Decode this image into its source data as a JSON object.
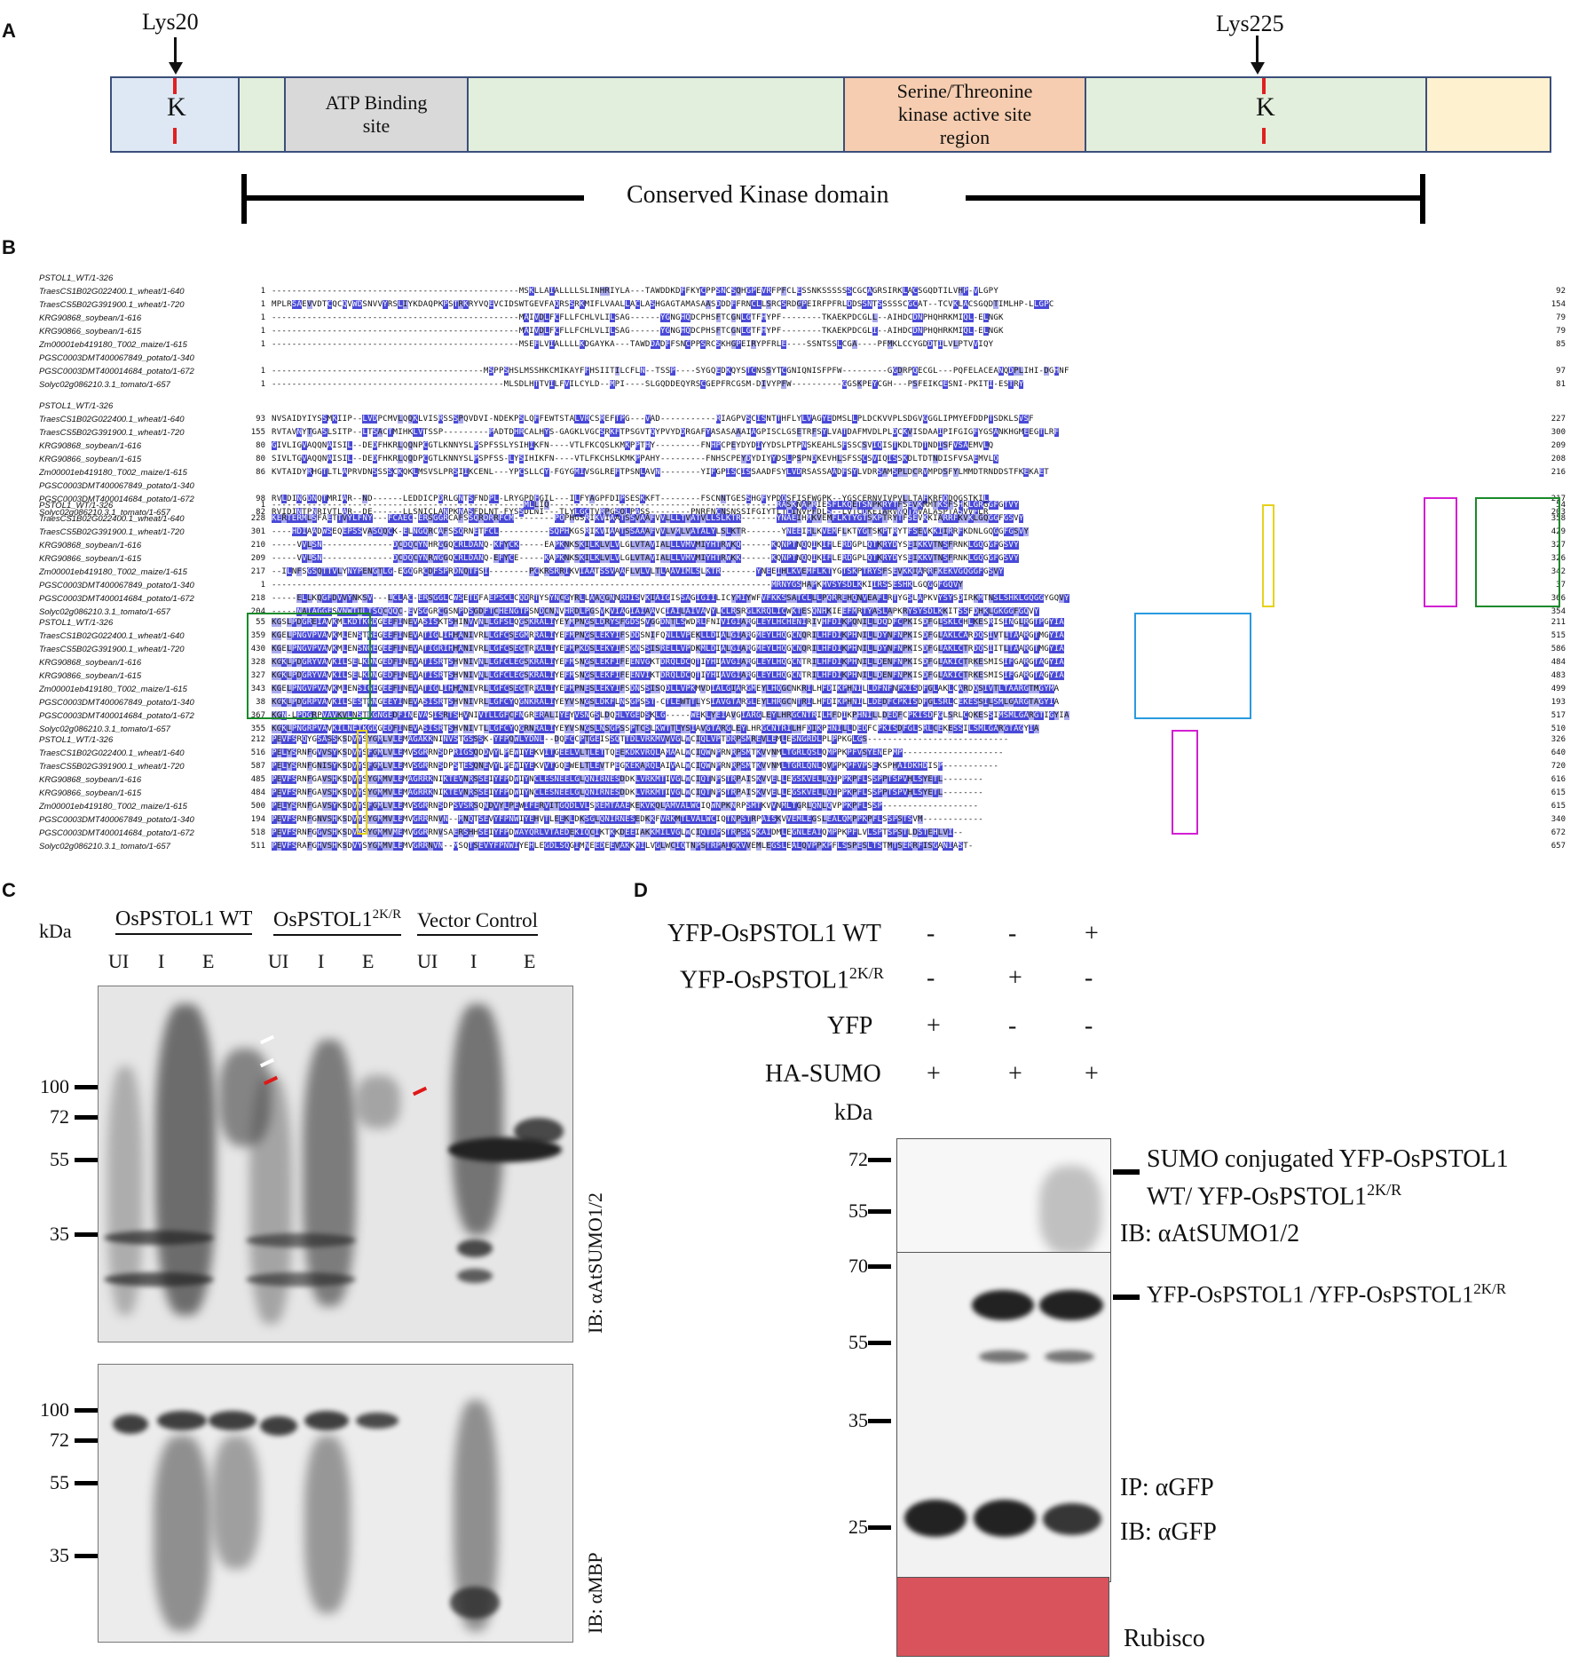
{
  "panels": {
    "A": "A",
    "B": "B",
    "C": "C",
    "D": "D"
  },
  "panelA": {
    "lys_left": "Lys20",
    "lys_right": "Lys225",
    "k_letter": "K",
    "atp": "ATP Binding site",
    "ser_line1": "Serine/Threonine",
    "ser_line2": "kinase active site",
    "ser_line3": "region",
    "conserved": "Conserved Kinase domain",
    "colors": {
      "seg1": "#dde8f4",
      "seg2": "#e2efdc",
      "seg_atp": "#d9d9d9",
      "seg_ser": "#f6cdb0",
      "seg_last": "#fdf1cf",
      "border": "#3b4f7a"
    }
  },
  "panelB": {
    "blocks": [
      {
        "rows": [
          {
            "name": "PSTOL1_WT/1-326",
            "start": "",
            "seq": "",
            "end": ""
          },
          {
            "name": "TraesCS1B02G022400.1_wheat/1-640",
            "start": "1",
            "seq": "-------------------------------------------------MSKLLAIALLLLSLINHRIYLA---TAWDDKDFFKYCPPSNCSQHGPEVRFPFCLESSNKSSSSSSCGCAGRSIRKLACSGQDTILVHP-VLGPY",
            "end": "92"
          },
          {
            "name": "TraesCS5B02G391900.1_wheat/1-720",
            "start": "1",
            "seq": "MPLRSAEVVDTCQCQVWDSNVVYRSLIYKDAQPKPSTRKRYVQEVCIDSWTGEVFAQRSSRKMIFLVAALLACLASHGAGTAMASAASDDDFFRNCLLSRCSRDGPEIRFPFRLDDSSNTSSSSSCGCAT--TCVKLACSGQDTIMLHP-LLGPC",
            "end": "154"
          },
          {
            "name": "KRG90868_soybean/1-616",
            "start": "1",
            "seq": "-------------------------------------------------MAIVDLFCFLLFCHLVLILSAG------YGNGHQDCPHSFTCGNLGTFHYPF--------TKAEKPDCGLL--AIHDCDNPHQHRKMIQL-ELNGK",
            "end": "79"
          },
          {
            "name": "KRG90866_soybean/1-615",
            "start": "1",
            "seq": "-------------------------------------------------MAIVDLFCFLLFCHLVLILSAG------YGNGHQDCPHSFTCGNLGTFHYPF--------TKAEKPDCGLI--AIHDCDNPHQHRKMIQL-ELNGK",
            "end": "79"
          },
          {
            "name": "Zm00001eb419180_T002_maize/1-615",
            "start": "1",
            "seq": "-------------------------------------------------MSEFLVIALLLLKDGAYKA---TAWDDADFFSNCPPSRCSKHGPEIRYPFRLE----SSNTSSLCGA----PFMKLCCYGDDTILVLPTVVIQY",
            "end": "85"
          },
          {
            "name": "PGSC0003DMT400067849_potato/1-340",
            "start": "",
            "seq": "",
            "end": ""
          },
          {
            "name": "PGSC0003DMT400014684_potato/1-672",
            "start": "1",
            "seq": "------------------------------------------MSPPSHSLMSSHKCMIKAYFFHSIITILCFLN--TSSP----SYGQEDKQYSTCNSSYTCGNIQNISFPFW---------GGDRPQECGL---PQFELACEANQDPLIHI-DGHNF",
            "end": "97"
          },
          {
            "name": "Solyc02g086210.3.1_tomato/1-657",
            "start": "1",
            "seq": "----------------------------------------------MLSDLHTTVILFVILCYLD--MPI----SLGQDDEQYRSCGEPFRCGSM-DIVYPFW----------GGSKPEYCGH---PSFEIKCESNI-PKITI-ESTRY",
            "end": "81"
          }
        ]
      },
      {
        "rows": [
          {
            "name": "PSTOL1_WT/1-326",
            "start": "",
            "seq": "",
            "end": ""
          },
          {
            "name": "TraesCS1B02G022400.1_wheat/1-640",
            "start": "93",
            "seq": "NVSAIDYIYSSMKIIP--LVDPCMVLQQKLVISRSSSPQVDVI-NDEKPSLQFFEWTSTALVRCSREFTPG---VAD-----------RIAGPVSCISNTTHFLYLVAGYEDMSLLPLDCKVVPLSDGVGGGLIPMYEFDDPTSDKLSVSF",
            "end": "227"
          },
          {
            "name": "TraesCS5B02G391900.1_wheat/1-720",
            "start": "155",
            "seq": "RVTAVNYTGASLSITP--LTSACTMIHKLVTSSP---------PADTDHRCALHYS-GAGKLVGCSRKFTPSGVTQYPVYDDRGAFYASASAAAIAGPISCLGSETRFSYLVATDAFMVDLPLDCKVISDAAIPIFGIGFYGSANKHGMEEGTLRF",
            "end": "300"
          },
          {
            "name": "KRG90868_soybean/1-616",
            "start": "80",
            "seq": "GIVLIGVAQQNAISIL--DEDFHKRLQQNPCGTLKNNYSLPSPFSSLYSIHIKFN----VTLFKCQSLKMKPPTHY---------FNHPCPEYDYDIYYDSLPTPNSKEAHLSFSSCSVIQISTKDLTDTNDISFVSAEMVLQ",
            "end": "209"
          },
          {
            "name": "KRG90866_soybean/1-615",
            "start": "80",
            "seq": "SIVLTGVAQQNAISIL--DEDFHKRLQQDPCGTLKNNYSLPSPFSS-LYSIHIKFN----VTLFKCHSLKMKPPAHY---------FNHSCPEYDYDIYYDSLPSPNDKEVHLSFSSCSVIQISSKDLTDTNDISFVSAEMVLQ",
            "end": "208"
          },
          {
            "name": "Zm00001eb419180_T002_maize/1-615",
            "start": "86",
            "seq": "KVTAIDYRHGTLTLAPRVDNSSSSCKQKLMSVSLPRSIIKCENL---YPCSLLCY-FGYGMIVSGLREFTPSNLAVN--------YIFGPISCISSAADFSYLVDRSASSAADFSYLVDRSAMSPLDCRVMPDSFYLMMDTRNDDSTFKEKAET",
            "end": "216"
          },
          {
            "name": "PGSC0003DMT400067849_potato/1-340",
            "start": "",
            "seq": "",
            "end": ""
          },
          {
            "name": "PGSC0003DMT400014684_potato/1-672",
            "start": "98",
            "seq": "RVLDINGDNQTMRIAR--ND------LEDDICPDRLGNTSFNDPL-LRYGPDFGIL---ILFYAGPFDIPSESKKFT--------FSCNNTGESSHGFYPDQSFISFWGPK--YGSCERNVIVPVLLTAFKRFQDQGSTKIL",
            "end": "217"
          },
          {
            "name": "Solyc02g086210.3.1_tomato/1-657",
            "start": "82",
            "seq": "RVIDINTPNRIVTLAR--DE------LLSNICLANPKNASFDLNT-FYSSDLNI---TLYLGCTVRPGSQLPASS--------PNRFNCNSNSSIFGIYTLTLINVPFDLS--LVTCQKEIARVNQTAVALASPTASVVFLR",
            "end": "203"
          }
        ]
      },
      {
        "rows": [
          {
            "name": "PSTOL1_WT/1-326",
            "start": "1",
            "seq": "--------------------------------------------------MLLIQ---------------------------------------------RASKNAPRIESFLKQETSNPKRYTFSEVKRMTKSFSHKLGRGGFGTVY",
            "end": "54"
          },
          {
            "name": "TraesCS1B02G022400.1_wheat/1-640",
            "start": "228",
            "seq": "KERTERMLSFAETTVYLFNY---FCAEC-ERSGGRCAFSSQRDRRFCM--------POPHGSRIKVIAATSSVAAFVVLLLTVATVLLSLKTR-------YNAEIHMKVEMFLKTYGTSKPTRYTFSEVKKIARRFKVKLGQGGFGSVY",
            "end": "358"
          },
          {
            "name": "TraesCS5B02G391900.1_wheat/1-720",
            "start": "301",
            "seq": "----HDIAADWSEQEPSSVASQQCK-ELNGQRCAFSSQRNETFCL----------SQPHKGSRIKVIAATSSAAAFVVLVMLVATALYLSLKTR-------YNEEIHLKVEMFLKTYGTSKPTRYTFSEVKKIIRRFKDNLGQGGFGSVY",
            "end": "429"
          },
          {
            "name": "KRG90868_soybean/1-616",
            "start": "210",
            "seq": "-----VVLSN--------------DCDQCYNHRGGQCRLDANQ-KFYCK-----EAPKNKSKILKLVLVLGLVTAVIALLLVMVMIYHTRWKQ------KQNPTNQQIKIFLERDGPLQTKRYDYSEIKKVTNSFRNKLGQGGFGSVY",
            "end": "327"
          },
          {
            "name": "KRG90866_soybean/1-615",
            "start": "209",
            "seq": "-----VVLSN--------------DCDQCYNRWGGQCRLDANQ-EFYCE-----KAPKNKSKILKLVLVLGLVTAVIALLLVMVMIYHTRWKK------KQNPTNQQIKIFLERDGPLQTKRYDYSEIKKVTNSFRNKLGQGGFGSVY",
            "end": "326"
          },
          {
            "name": "Zm00001eb419180_T002_maize/1-615",
            "start": "217",
            "seq": "--ILNFSGSQTTVLYNYPENGTLG-EGQGRCDFSPRDNQTFSI--------PCKRSRRIKVIAATSSVAAFLVLVLTLAAVIMLSLKTR-------YNEEIHLKVEMFLKTYGTSKPTRYSFSEVKKIARRFKEKVGQGGFGSVY",
            "end": "342"
          },
          {
            "name": "PGSC0003DMT400067849_potato/1-340",
            "start": "1",
            "seq": "---------------------------------------------------------------------------------------------------MRNYGSHAPKMVSYSDLKKIIRSSESHKLGQGGFGQVY",
            "end": "37"
          },
          {
            "name": "PGSC0003DMT400014684_potato/1-672",
            "start": "218",
            "seq": "-----ELLKQGFDVVYNKSV---LCLAC-ERSGGLCWSETDFAEPSCLCQDRTYSYNCGYRLLAAQGNNRHISVKIAIGISSAGIGIILICYMIYWFVFKKSSATCLLLPQRREHQNVEAFLRTYGSLAPKVYSYSDIRKMTNSLSHKLGQGGYGQVY",
            "end": "366"
          },
          {
            "name": "Solyc02g086210.3.1_tomato/1-657",
            "start": "204",
            "seq": "-----NAIAGGFSVNWTILTSQCQQC-EVSGGRCGSNPDSGDFTCHENGTPSNDCNNVHRDLPGSVKVIAGIAIAAVCIAILAIVAVYLCLRSRGLKRQLICWKTESQNHKIEEFMRTYASLAPKRYSYSDLKKITSSFDHKLGKGGFGQVY",
            "end": "354"
          }
        ]
      },
      {
        "rows": [
          {
            "name": "PSTOL1_WT/1-326",
            "start": "55",
            "seq": "KGSLPDGREIAVKMLKDTKGDGEEFINEVASISKTSHINVVNLLGFSLQGSKRALIYEYMPNGSLDRYSFGDSSVGGDNTLSWDRLFNIVIGIARGLEYLHCHENIRIVHFDIKPQNILLDQDFCPKISDFGLSKLCHLKESRISINGLRGTPGYIA",
            "end": "211"
          },
          {
            "name": "TraesCS1B02G022400.1_wheat/1-640",
            "start": "359",
            "seq": "KGELPNGVPVAVKMLENSTGEGEEFINEVATIGLIHHANIVRLLGFCSEGMRRALIYEFMPNGSLEKYIFSDDSNIFQNLLVPEKLLDIALGIARGMEYLHQGCNQRILHFDIKPHNILLDYNFNPKISDFGLAKLCARDQSIVTLTAARGTMGYIA",
            "end": "515"
          },
          {
            "name": "TraesCS5B02G391900.1_wheat/1-720",
            "start": "430",
            "seq": "KGELPNGVPVAVKMLENSNGEGEEFINEVATIGRIHHANIVRLLGFCSEGTRRALIYEFMPKDSLEKYIFSGNSSISRELLVPDKMLDIALGIARGMEYLHQGCNQRILHFDIKPHNILLDYNFNPKISDFGLAKLCTRDQSIITLTAARGTMGYIA",
            "end": "586"
          },
          {
            "name": "KRG90868_soybean/1-616",
            "start": "328",
            "seq": "KGKLPDGRYVAVKILSELKDNGEDFINEVATISRTSHVNIVNLLGFCLEGSKRALIYEFMSNGSLEKFIFEENVGKTDRQLDCQTIYHIAVGIARGLEYLHQGCNTRILHFDIKPHNILLDENFNPKISDFGLAKICTRKESMISIFGARGTAGYIA",
            "end": "484"
          },
          {
            "name": "KRG90866_soybean/1-615",
            "start": "327",
            "seq": "KGKLPDGRYVAVKILSELKDNGEDFINEVATISRTSHVNIVNLLGFCLEGSKRALIYEFMSNGSLEKFIFEENVIKTDRQLDCQTIYHIAVGIARGLEYLHQGCNTRILHFDIKPHNILLDENFNPKISDFGLAKICTRKESMISIFGARGTAGYIA",
            "end": "483"
          },
          {
            "name": "Zm00001eb419180_T002_maize/1-615",
            "start": "343",
            "seq": "KGELPNGVPVAVKMLENSIGEGEEFINEVATIGLIHHANIVRLLGFCSEGTRRALIYEFMPNESLEKYIFSDNSSISQDLLVPKMVDIALGIARGMEYLHQGCNKRILHFDIKPHNILLDFNFNPKISDFGLAKLCARDQSIVTLTAARGTMGYMA",
            "end": "499"
          },
          {
            "name": "PGSC0003DMT400067849_potato/1-340",
            "start": "38",
            "seq": "KGKLPDGRPVAVKILSESTGNGEEYINEVASISRTSHVNIVRLLGFCYQGNKRALIYEYVSNGSLDKFLNSGPSST-CTLEWTTLYSIAVGTARGLEYLHRGCNTRILHFDIKPHNILLDEDFCPKISDFGLSRLCEKESSILSMLGARGTAGYIA",
            "end": "193"
          },
          {
            "name": "PGSC0003DMT400014684_potato/1-672",
            "start": "367",
            "seq": "KGN-LPDGRPVAVKVLNSTKGNGEDFINEVASISRTSHVNIVTLLGFCFNGRERALIYEYVSNGSLDQHLYGEDSKLG-----WEKLYEIAVGIARGLEYLHRGCNTRILHFDIKPHNILLDEDFCPKISDFGLSRLCQKESSIMSMLGARGTIGYIA",
            "end": "517"
          },
          {
            "name": "Solyc02g086210.3.1_tomato/1-657",
            "start": "355",
            "seq": "KGKLPNGRPVAVKILNETKGDGEDFINEVASISRTSHVNIVTLLGFCYQGRNRALIYEYVSNGSLNSGPSSPTCSLKWTTLYSIAVGTARGLEYLHRGCNTRILHFDIKPHNILLDEDFCPKISDFGLSRLCEKESSILSMLGARGTAGYIA",
            "end": "510"
          }
        ]
      },
      {
        "rows": [
          {
            "name": "PSTOL1_WT/1-326",
            "start": "212",
            "seq": "PEVFSRQYGSASSKSDVYSYGMLVLEMAGAKKNINVSTGSSSK-YFPQWLYDNL--DQFCCPTGEISSQTTDLVRKMVVVGLWCIQLVPTDRPSMREVLEMLESNGRDLPLPPKGLGS----------------------------",
            "end": "326"
          },
          {
            "name": "TraesCS1B02G022400.1_wheat/1-640",
            "start": "516",
            "seq": "PELYSRNFGVVSYKSDVYSFGMLVLEMVSGRRNSDPRIGSQDDVYLPEWIYEKVITGEELVLTLETTQEEKDKVRQLAMAALWCIQWNPRNRPSMTKVVNMLTGRLQSLQMPPKPFVSYENEPMP--------------------",
            "end": "640"
          },
          {
            "name": "TraesCS5B02G391900.1_wheat/1-720",
            "start": "587",
            "seq": "PELYSRNFGNISYKSDVYSFGMLVLEMVSGRRNSDPSTESQNEVYLPEWIYEKVVTGQEWELTLEVTPEGKEKARQLAIVALWCIQWNPRNRPSMTKVVNMLTGRLQNLQVPPKPFVPSEKSPHAIDKHDISP-----------",
            "end": "720"
          },
          {
            "name": "KRG90868_soybean/1-616",
            "start": "485",
            "seq": "PEVFSRNFGAVSHKSDVYSYGMMVLEMAGRRKNIKTEVNRSSEIYFPDWIYNCLESNEELGLQNIRNESDDKLVRKMTIVGLWCIQTNPSTRPAISKVVELLEGSKVELLQIPPKPFLSSPPTSPVHLSYETL--------",
            "end": "616"
          },
          {
            "name": "KRG90866_soybean/1-615",
            "start": "484",
            "seq": "PEVFSRNFGAVSHKSDVYSYGMMVLEMAGRRKNIKTEVNRSSEIYFPDWIYNCLESNEELGLQNIRNESDDKLVRKMTIVGLWCIQTNPSTRPAISKVVELLEGSKVELLQIPPKPFLSSPPTSPVHLSYETL--------",
            "end": "615"
          },
          {
            "name": "Zm00001eb419180_T002_maize/1-615",
            "start": "500",
            "seq": "PELYSRNFGAVSYKSDVYSFGMLVLEMVSGRRNSDPSVSRSQNDVYLPEWIFERVITGQDLVLSREMTAAEKEKVKQLAMVALWCIQWNPKNRPSMTKVVNMLTGRLQNLQVPPKPFLSSP-------------------",
            "end": "615"
          },
          {
            "name": "PGSC0003DMT400067849_potato/1-340",
            "start": "194",
            "seq": "PEVFSRNFGNVSHKSDVYSYGMMVLEMVGRRRNVN--MNQTSEVYFPNWIYEHVTLEEKLDKSGLQNIRNESEDKKFVRKMTLVALWCIQTNPSTRPAISKVVEMLEGSLEALQMPPKPFLSSPSTSVM------------",
            "end": "340"
          },
          {
            "name": "PGSC0003DMT400014684_potato/1-672",
            "start": "518",
            "seq": "PEVFSRNFGGVSHKSDVYSYGMMVMEMVGGRRNVSAERSHHSEIYFPDWAYQRLVTAEDEKIQCIKTKKDEEIAKKMILVGLWCIQTDPSTRPSMSKAIDMLEGNLEAIQMPPKPFLVLSPTSPSTLDSTEHLVI--",
            "end": "672"
          },
          {
            "name": "Solyc02g086210.3.1_tomato/1-657",
            "start": "511",
            "seq": "PEVFSRAFGHVSHKSDVYSYGMMVLEMVGRRNVN--MSQTSEVYFPNWIYEHLEGDLSQGIMNEEDEEVAKKMILVGLWCIQTNPSTRPAIGKVVEMLEGSLEALQVPPKPFLSSPESLTSTMTSERRFISGANIAST-",
            "end": "657"
          }
        ]
      }
    ]
  },
  "panelC": {
    "kda": "kDa",
    "groups": [
      "OsPSTOL1 WT",
      "OsPSTOL1",
      "Vector Control"
    ],
    "group2_sup": "2K/R",
    "lanes": [
      "UI",
      "I",
      "E",
      "UI",
      "I",
      "E",
      "UI",
      "I",
      "E"
    ],
    "mw_top": [
      "100",
      "72",
      "55",
      "35"
    ],
    "mw_bottom": [
      "100",
      "72",
      "55",
      "35"
    ],
    "ib_top": "IB: αAtSUMO1/2",
    "ib_bottom": "IB: αMBP"
  },
  "panelD": {
    "rows": [
      {
        "label": "YFP-OsPSTOL1 WT",
        "sup": "",
        "vals": [
          "-",
          "-",
          "+"
        ]
      },
      {
        "label": "YFP-OsPSTOL1",
        "sup": "2K/R",
        "vals": [
          "-",
          "+",
          "-"
        ]
      },
      {
        "label": "YFP",
        "sup": "",
        "vals": [
          "+",
          "-",
          "-"
        ]
      },
      {
        "label": "HA-SUMO",
        "sup": "",
        "vals": [
          "+",
          "+",
          "+"
        ]
      }
    ],
    "kda": "kDa",
    "mw_top": [
      "72",
      "55"
    ],
    "mw_bottom": [
      "70",
      "55",
      "35",
      "25"
    ],
    "ann1_line1": "SUMO conjugated YFP-OsPSTOL1",
    "ann1_line2": "WT/ YFP-OsPSTOL1",
    "ann1_sup": "2K/R",
    "ann_ib1": "IB: αAtSUMO1/2",
    "ann2": "YFP-OsPSTOL1 /YFP-OsPSTOL1",
    "ann2_sup": "2K/R",
    "ip": "IP: αGFP",
    "ib2": "IB: αGFP",
    "rubisco": "Rubisco",
    "colors": {
      "rubisco": "#d9535c"
    }
  }
}
